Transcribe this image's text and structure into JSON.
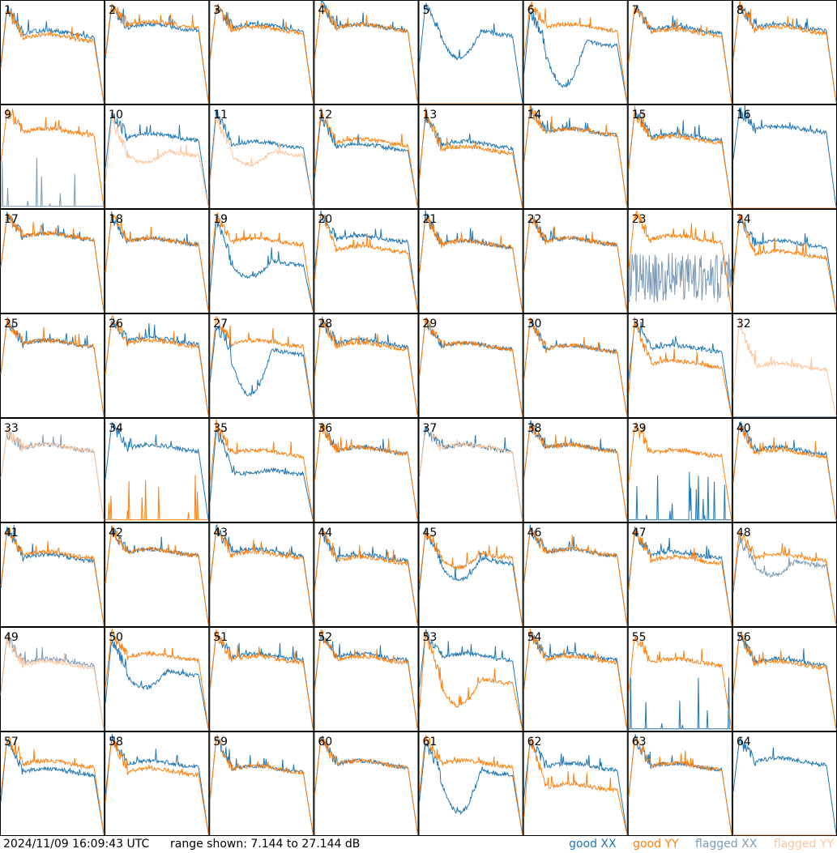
{
  "footer": {
    "timestamp": "2024/11/09 16:09:43 UTC",
    "range_text": "range shown: 7.144 to 27.144 dB"
  },
  "legend": [
    {
      "label": "good XX",
      "color": "#1f77b4"
    },
    {
      "label": "good YY",
      "color": "#ff7f0e"
    },
    {
      "label": "flagged XX",
      "color": "#7b9bb8"
    },
    {
      "label": "flagged YY",
      "color": "#ffc49a"
    }
  ],
  "colors": {
    "good_xx": "#1f77b4",
    "good_yy": "#ff7f0e",
    "flagged_xx": "#7b9bb8",
    "flagged_yy": "#ffc49a"
  },
  "chart_data": {
    "type": "line",
    "title": "",
    "ylim": [
      7.144,
      27.144
    ],
    "yunit": "dB",
    "grid": false,
    "legend_position": "bottom-right",
    "panel_count": 64,
    "panels": [
      {
        "id": "1",
        "xx": "good",
        "yy": "good",
        "xx_shape": "n",
        "yy_shape": "n",
        "xx_level": 20.8,
        "yy_level": 20.0,
        "xx_peak": 26.0,
        "yy_peak": 25.5,
        "xx_dip": 13.5,
        "yy_dip": 11.0,
        "yy_offset": 0.0
      },
      {
        "id": "2",
        "xx": "good",
        "yy": "good",
        "xx_shape": "n",
        "yy_shape": "n",
        "xx_level": 22.0,
        "yy_level": 22.5,
        "xx_peak": 26.0,
        "yy_peak": 26.5
      },
      {
        "id": "3",
        "xx": "good",
        "yy": "good",
        "xx_shape": "n",
        "yy_shape": "n",
        "xx_level": 22.0,
        "yy_level": 21.5,
        "xx_peak": 26.0,
        "yy_peak": 26.0
      },
      {
        "id": "4",
        "xx": "good",
        "yy": "good",
        "xx_shape": "n",
        "yy_shape": "n",
        "xx_level": 22.0,
        "yy_level": 22.0,
        "xx_peak": 26.5,
        "yy_peak": 26.5
      },
      {
        "id": "5",
        "xx": "good",
        "yy": "flagged",
        "xx_shape": "dip",
        "yy_shape": "flat_low",
        "xx_level": 21.0,
        "yy_level": 7.2,
        "xx_peak": 26.5,
        "xx_dip": 15.5
      },
      {
        "id": "6",
        "xx": "good",
        "yy": "good",
        "xx_shape": "dip",
        "yy_shape": "n",
        "xx_level": 19.0,
        "yy_level": 22.0,
        "xx_peak": 25.0,
        "yy_peak": 26.5,
        "xx_dip": 10.0
      },
      {
        "id": "7",
        "xx": "good",
        "yy": "good",
        "xx_shape": "n",
        "yy_shape": "n",
        "xx_level": 21.5,
        "yy_level": 21.0,
        "xx_peak": 26.0,
        "yy_peak": 26.0
      },
      {
        "id": "8",
        "xx": "good",
        "yy": "good",
        "xx_shape": "n",
        "yy_shape": "n",
        "xx_level": 22.0,
        "yy_level": 21.5,
        "xx_peak": 26.5,
        "yy_peak": 26.5
      },
      {
        "id": "9",
        "xx": "flagged",
        "yy": "good",
        "xx_shape": "spikes_low",
        "yy_shape": "n",
        "xx_level": 7.5,
        "yy_level": 22.0,
        "yy_peak": 26.0
      },
      {
        "id": "10",
        "xx": "good",
        "yy": "flagged",
        "xx_shape": "n",
        "yy_shape": "dip",
        "xx_level": 21.0,
        "yy_level": 18.0,
        "xx_peak": 25.5,
        "yy_peak": 24.0,
        "yy_dip": 15.5
      },
      {
        "id": "11",
        "xx": "good",
        "yy": "flagged",
        "xx_shape": "n",
        "yy_shape": "dip",
        "xx_level": 19.5,
        "yy_level": 18.0,
        "xx_peak": 26.0,
        "yy_peak": 24.5,
        "yy_dip": 15.0
      },
      {
        "id": "12",
        "xx": "good",
        "yy": "good",
        "xx_shape": "n",
        "yy_shape": "n",
        "xx_level": 19.0,
        "yy_level": 20.0,
        "xx_peak": 25.0,
        "yy_peak": 26.0
      },
      {
        "id": "13",
        "xx": "good",
        "yy": "good",
        "xx_shape": "n",
        "yy_shape": "n",
        "xx_level": 19.5,
        "yy_level": 18.5,
        "xx_peak": 25.0,
        "yy_peak": 26.0
      },
      {
        "id": "14",
        "xx": "good",
        "yy": "good",
        "xx_shape": "n",
        "yy_shape": "n",
        "xx_level": 22.0,
        "yy_level": 22.0,
        "xx_peak": 26.5,
        "yy_peak": 26.5
      },
      {
        "id": "15",
        "xx": "good",
        "yy": "good",
        "xx_shape": "n",
        "yy_shape": "n",
        "xx_level": 21.0,
        "yy_level": 20.5,
        "xx_peak": 26.0,
        "yy_peak": 26.0
      },
      {
        "id": "16",
        "xx": "good",
        "yy": "flagged",
        "xx_shape": "n",
        "yy_shape": "flat_low",
        "xx_level": 22.5,
        "yy_level": 7.2,
        "xx_peak": 26.0
      },
      {
        "id": "17",
        "xx": "good",
        "yy": "good",
        "xx_shape": "n",
        "yy_shape": "n",
        "xx_level": 22.0,
        "yy_level": 22.0,
        "xx_peak": 26.0,
        "yy_peak": 26.0
      },
      {
        "id": "18",
        "xx": "good",
        "yy": "good",
        "xx_shape": "n",
        "yy_shape": "n",
        "xx_level": 21.0,
        "yy_level": 21.0,
        "xx_peak": 26.0,
        "yy_peak": 26.0
      },
      {
        "id": "19",
        "xx": "good",
        "yy": "good",
        "xx_shape": "dip",
        "yy_shape": "n",
        "xx_level": 17.0,
        "yy_level": 21.0,
        "xx_peak": 25.0,
        "yy_peak": 26.0,
        "xx_dip": 13.5
      },
      {
        "id": "20",
        "xx": "good",
        "yy": "good",
        "xx_shape": "n",
        "yy_shape": "n",
        "xx_level": 21.5,
        "yy_level": 19.5,
        "xx_peak": 26.0,
        "yy_peak": 26.5
      },
      {
        "id": "21",
        "xx": "good",
        "yy": "good",
        "xx_shape": "n",
        "yy_shape": "n",
        "xx_level": 20.5,
        "yy_level": 20.5,
        "xx_peak": 26.0,
        "yy_peak": 26.0
      },
      {
        "id": "22",
        "xx": "good",
        "yy": "good",
        "xx_shape": "n",
        "yy_shape": "n",
        "xx_level": 21.0,
        "yy_level": 21.0,
        "xx_peak": 26.0,
        "yy_peak": 26.0
      },
      {
        "id": "23",
        "xx": "flagged",
        "yy": "good",
        "xx_shape": "noise",
        "yy_shape": "n",
        "xx_level": 14.0,
        "yy_level": 21.5,
        "yy_peak": 26.5
      },
      {
        "id": "24",
        "xx": "good",
        "yy": "good",
        "xx_shape": "n",
        "yy_shape": "n",
        "xx_level": 20.5,
        "yy_level": 18.5,
        "xx_peak": 25.5,
        "yy_peak": 26.5
      },
      {
        "id": "25",
        "xx": "good",
        "yy": "good",
        "xx_shape": "n",
        "yy_shape": "n",
        "xx_level": 21.5,
        "yy_level": 21.5,
        "xx_peak": 26.0,
        "yy_peak": 26.0
      },
      {
        "id": "26",
        "xx": "good",
        "yy": "good",
        "xx_shape": "n",
        "yy_shape": "n",
        "xx_level": 22.0,
        "yy_level": 21.5,
        "xx_peak": 26.0,
        "yy_peak": 26.5
      },
      {
        "id": "27",
        "xx": "good",
        "yy": "good",
        "xx_shape": "dip",
        "yy_shape": "n",
        "xx_level": 20.0,
        "yy_level": 21.5,
        "xx_peak": 25.0,
        "yy_peak": 26.5,
        "xx_dip": 11.0
      },
      {
        "id": "28",
        "xx": "good",
        "yy": "good",
        "xx_shape": "n",
        "yy_shape": "n",
        "xx_level": 21.5,
        "yy_level": 21.0,
        "xx_peak": 26.0,
        "yy_peak": 26.0
      },
      {
        "id": "29",
        "xx": "good",
        "yy": "good",
        "xx_shape": "n",
        "yy_shape": "n",
        "xx_level": 21.0,
        "yy_level": 21.0,
        "xx_peak": 26.0,
        "yy_peak": 26.0
      },
      {
        "id": "30",
        "xx": "good",
        "yy": "good",
        "xx_shape": "n",
        "yy_shape": "n",
        "xx_level": 20.5,
        "yy_level": 20.5,
        "xx_peak": 26.0,
        "yy_peak": 26.0
      },
      {
        "id": "31",
        "xx": "good",
        "yy": "good",
        "xx_shape": "n",
        "yy_shape": "n",
        "xx_level": 20.5,
        "yy_level": 17.5,
        "xx_peak": 25.5,
        "yy_peak": 26.0
      },
      {
        "id": "32",
        "xx": "flagged",
        "yy": "flagged",
        "xx_shape": "flat_low",
        "yy_shape": "n",
        "xx_level": 7.2,
        "yy_level": 17.0,
        "yy_peak": 26.0
      },
      {
        "id": "33",
        "xx": "flagged",
        "yy": "flagged",
        "xx_shape": "n",
        "yy_shape": "n",
        "xx_level": 21.5,
        "yy_level": 21.5,
        "xx_peak": 24.5,
        "yy_peak": 24.5
      },
      {
        "id": "34",
        "xx": "good",
        "yy": "good",
        "xx_shape": "n",
        "yy_shape": "spikes_low",
        "xx_level": 21.5,
        "yy_level": 7.5,
        "xx_peak": 26.0
      },
      {
        "id": "35",
        "xx": "good",
        "yy": "good",
        "xx_shape": "dip",
        "yy_shape": "n",
        "xx_level": 17.0,
        "yy_level": 20.5,
        "xx_peak": 25.0,
        "yy_peak": 26.0,
        "xx_dip": 16.0
      },
      {
        "id": "36",
        "xx": "good",
        "yy": "good",
        "xx_shape": "n",
        "yy_shape": "n",
        "xx_level": 21.0,
        "yy_level": 21.0,
        "xx_peak": 26.0,
        "yy_peak": 26.0
      },
      {
        "id": "37",
        "xx": "good",
        "yy": "flagged",
        "xx_shape": "n",
        "yy_shape": "n",
        "xx_level": 21.5,
        "yy_level": 21.5,
        "xx_peak": 25.5,
        "yy_peak": 25.0
      },
      {
        "id": "38",
        "xx": "good",
        "yy": "good",
        "xx_shape": "n",
        "yy_shape": "n",
        "xx_level": 21.5,
        "yy_level": 21.5,
        "xx_peak": 26.0,
        "yy_peak": 26.0
      },
      {
        "id": "39",
        "xx": "good",
        "yy": "good",
        "xx_shape": "spikes_low",
        "yy_shape": "n",
        "xx_level": 7.5,
        "yy_level": 20.5,
        "yy_peak": 26.0
      },
      {
        "id": "40",
        "xx": "good",
        "yy": "good",
        "xx_shape": "n",
        "yy_shape": "n",
        "xx_level": 21.0,
        "yy_level": 20.5,
        "xx_peak": 26.0,
        "yy_peak": 26.0
      },
      {
        "id": "41",
        "xx": "good",
        "yy": "good",
        "xx_shape": "n",
        "yy_shape": "n",
        "xx_level": 20.5,
        "yy_level": 21.0,
        "xx_peak": 26.0,
        "yy_peak": 26.0
      },
      {
        "id": "42",
        "xx": "good",
        "yy": "good",
        "xx_shape": "n",
        "yy_shape": "n",
        "xx_level": 21.5,
        "yy_level": 21.5,
        "xx_peak": 26.0,
        "yy_peak": 26.0
      },
      {
        "id": "43",
        "xx": "good",
        "yy": "good",
        "xx_shape": "n",
        "yy_shape": "n",
        "xx_level": 21.5,
        "yy_level": 21.0,
        "xx_peak": 26.0,
        "yy_peak": 26.0
      },
      {
        "id": "44",
        "xx": "good",
        "yy": "good",
        "xx_shape": "n",
        "yy_shape": "n",
        "xx_level": 20.5,
        "yy_level": 20.0,
        "xx_peak": 25.5,
        "yy_peak": 26.0
      },
      {
        "id": "45",
        "xx": "good",
        "yy": "good",
        "xx_shape": "dip",
        "yy_shape": "dip",
        "xx_level": 20.0,
        "yy_level": 21.0,
        "xx_peak": 25.5,
        "yy_peak": 25.5,
        "xx_dip": 15.5,
        "yy_dip": 18.0
      },
      {
        "id": "46",
        "xx": "good",
        "yy": "good",
        "xx_shape": "n",
        "yy_shape": "n",
        "xx_level": 21.5,
        "yy_level": 21.5,
        "xx_peak": 26.0,
        "yy_peak": 26.0
      },
      {
        "id": "47",
        "xx": "good",
        "yy": "good",
        "xx_shape": "n",
        "yy_shape": "n",
        "xx_level": 21.0,
        "yy_level": 20.0,
        "xx_peak": 25.5,
        "yy_peak": 26.0
      },
      {
        "id": "48",
        "xx": "flagged",
        "yy": "good",
        "xx_shape": "dip",
        "yy_shape": "n",
        "xx_level": 19.5,
        "yy_level": 20.5,
        "xx_peak": 24.0,
        "yy_peak": 25.5,
        "xx_dip": 16.5
      },
      {
        "id": "49",
        "xx": "flagged",
        "yy": "flagged",
        "xx_shape": "n",
        "yy_shape": "n",
        "xx_level": 20.5,
        "yy_level": 20.0,
        "xx_peak": 25.5,
        "yy_peak": 25.0
      },
      {
        "id": "50",
        "xx": "good",
        "yy": "good",
        "xx_shape": "dip",
        "yy_shape": "n",
        "xx_level": 18.5,
        "yy_level": 21.5,
        "xx_peak": 25.0,
        "yy_peak": 26.0,
        "xx_dip": 15.0
      },
      {
        "id": "51",
        "xx": "good",
        "yy": "good",
        "xx_shape": "n",
        "yy_shape": "n",
        "xx_level": 21.5,
        "yy_level": 21.0,
        "xx_peak": 26.0,
        "yy_peak": 26.0
      },
      {
        "id": "52",
        "xx": "good",
        "yy": "good",
        "xx_shape": "n",
        "yy_shape": "n",
        "xx_level": 21.5,
        "yy_level": 21.0,
        "xx_peak": 26.0,
        "yy_peak": 26.0
      },
      {
        "id": "53",
        "xx": "good",
        "yy": "good",
        "xx_shape": "n",
        "yy_shape": "dip",
        "xx_level": 21.5,
        "yy_level": 17.0,
        "xx_peak": 26.0,
        "yy_peak": 26.0,
        "yy_dip": 11.5
      },
      {
        "id": "54",
        "xx": "good",
        "yy": "good",
        "xx_shape": "n",
        "yy_shape": "n",
        "xx_level": 21.5,
        "yy_level": 21.0,
        "xx_peak": 26.0,
        "yy_peak": 26.0
      },
      {
        "id": "55",
        "xx": "good",
        "yy": "good",
        "xx_shape": "spikes_low",
        "yy_shape": "n",
        "xx_level": 7.5,
        "yy_level": 20.5,
        "yy_peak": 26.0
      },
      {
        "id": "56",
        "xx": "good",
        "yy": "good",
        "xx_shape": "n",
        "yy_shape": "n",
        "xx_level": 20.5,
        "yy_level": 20.0,
        "xx_peak": 26.0,
        "yy_peak": 26.0
      },
      {
        "id": "57",
        "xx": "good",
        "yy": "good",
        "xx_shape": "n",
        "yy_shape": "n",
        "xx_level": 19.5,
        "yy_level": 21.0,
        "xx_peak": 26.0,
        "yy_peak": 26.0
      },
      {
        "id": "58",
        "xx": "good",
        "yy": "good",
        "xx_shape": "n",
        "yy_shape": "n",
        "xx_level": 21.0,
        "yy_level": 19.5,
        "xx_peak": 26.0,
        "yy_peak": 26.0
      },
      {
        "id": "59",
        "xx": "good",
        "yy": "good",
        "xx_shape": "n",
        "yy_shape": "n",
        "xx_level": 20.0,
        "yy_level": 20.0,
        "xx_peak": 26.0,
        "yy_peak": 26.0
      },
      {
        "id": "60",
        "xx": "good",
        "yy": "good",
        "xx_shape": "n",
        "yy_shape": "n",
        "xx_level": 21.0,
        "yy_level": 21.0,
        "xx_peak": 26.0,
        "yy_peak": 26.0
      },
      {
        "id": "61",
        "xx": "good",
        "yy": "good",
        "xx_shape": "dip",
        "yy_shape": "n",
        "xx_level": 19.5,
        "yy_level": 21.0,
        "xx_peak": 25.0,
        "yy_peak": 26.5,
        "xx_dip": 11.0
      },
      {
        "id": "62",
        "xx": "good",
        "yy": "good",
        "xx_shape": "n",
        "yy_shape": "n",
        "xx_level": 20.5,
        "yy_level": 16.5,
        "xx_peak": 25.5,
        "yy_peak": 26.0
      },
      {
        "id": "63",
        "xx": "good",
        "yy": "good",
        "xx_shape": "n",
        "yy_shape": "n",
        "xx_level": 20.5,
        "yy_level": 20.5,
        "xx_peak": 26.0,
        "yy_peak": 26.0
      },
      {
        "id": "64",
        "xx": "good",
        "yy": "flagged",
        "xx_shape": "n",
        "yy_shape": "flat_low",
        "xx_level": 21.5,
        "yy_level": 7.2,
        "xx_peak": 25.5
      }
    ]
  }
}
